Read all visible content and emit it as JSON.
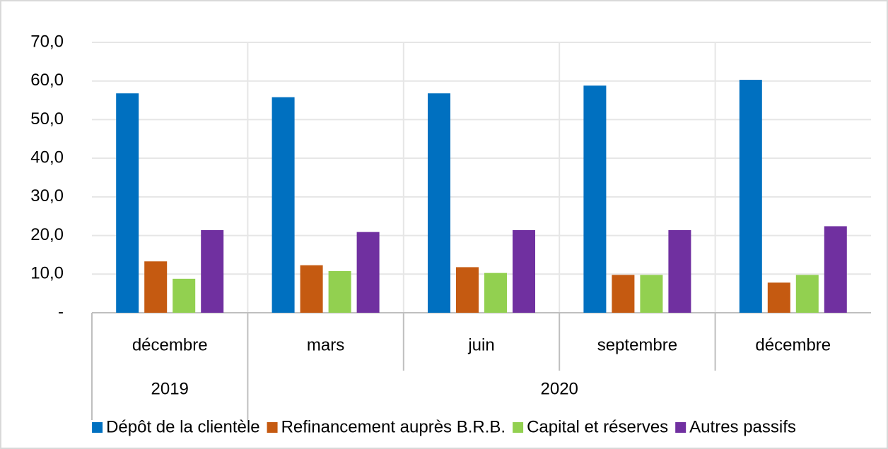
{
  "chart_data": {
    "type": "bar",
    "category_groups": [
      {
        "name": "2019",
        "categories": [
          "décembre"
        ]
      },
      {
        "name": "2020",
        "categories": [
          "mars",
          "juin",
          "septembre",
          "décembre"
        ]
      }
    ],
    "series": [
      {
        "name": "Dépôt de la clientèle",
        "color": "#0070c0",
        "values": [
          56.8,
          55.8,
          56.8,
          58.8,
          60.3
        ]
      },
      {
        "name": "Refinancement auprès B.R.B.",
        "color": "#c55a11",
        "values": [
          13.3,
          12.3,
          11.8,
          9.8,
          7.8
        ]
      },
      {
        "name": "Capital et réserves",
        "color": "#92d050",
        "values": [
          8.8,
          10.8,
          10.3,
          9.8,
          9.8
        ]
      },
      {
        "name": "Autres passifs",
        "color": "#7030a0",
        "values": [
          21.4,
          20.9,
          21.4,
          21.4,
          22.4
        ]
      }
    ],
    "ylim": [
      0,
      70
    ],
    "yticks": [
      {
        "value": 0,
        "label": "-"
      },
      {
        "value": 10,
        "label": "10,0"
      },
      {
        "value": 20,
        "label": "20,0"
      },
      {
        "value": 30,
        "label": "30,0"
      },
      {
        "value": 40,
        "label": "40,0"
      },
      {
        "value": 50,
        "label": "50,0"
      },
      {
        "value": 60,
        "label": "60,0"
      },
      {
        "value": 70,
        "label": "70,0"
      }
    ],
    "grid": true,
    "legend": "bottom"
  }
}
